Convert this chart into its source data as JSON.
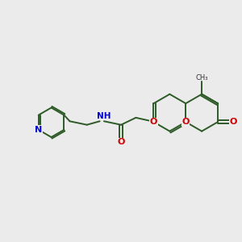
{
  "bg_color": "#ebebeb",
  "bond_color": "#2d5a27",
  "n_color": "#0000cc",
  "o_color": "#cc0000",
  "text_color": "#333333",
  "figsize": [
    3.0,
    3.0
  ],
  "dpi": 100,
  "xlim": [
    0,
    10
  ],
  "ylim": [
    0,
    10
  ]
}
